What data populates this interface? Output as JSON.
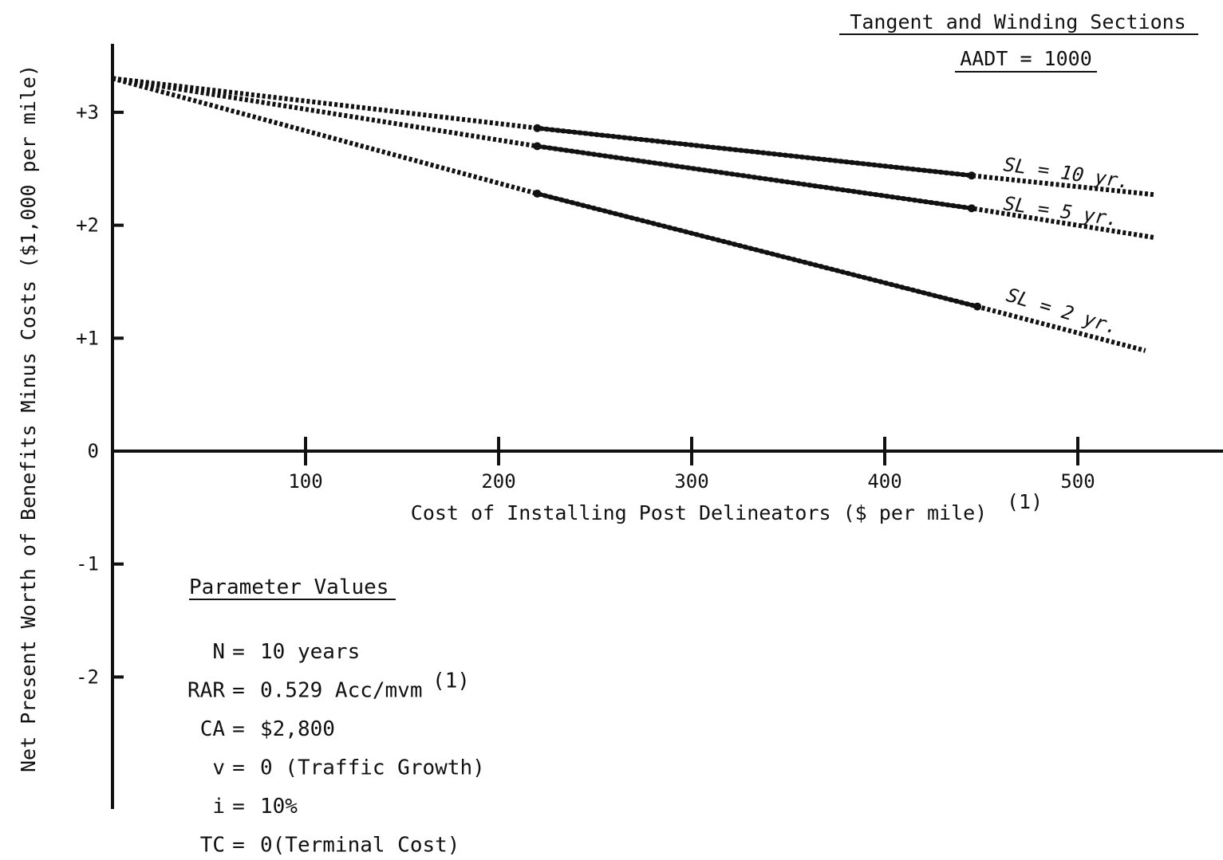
{
  "chart_data": {
    "type": "line",
    "header": {
      "line1": "Tangent and Winding Sections",
      "line2": "AADT = 1000"
    },
    "xlabel": "Cost of Installing Post Delineators ($ per mile)",
    "xlabel_superscript": "(1)",
    "ylabel": "Net Present Worth of Benefits Minus Costs ($1,000 per mile)",
    "xlim": [
      0,
      570
    ],
    "ylim": [
      -3.1,
      3.6
    ],
    "x_ticks": [
      100,
      200,
      300,
      400,
      500
    ],
    "y_ticks": [
      {
        "value": 3,
        "label": "+3"
      },
      {
        "value": 2,
        "label": "+2"
      },
      {
        "value": 1,
        "label": "+1"
      },
      {
        "value": 0,
        "label": "0"
      },
      {
        "value": -1,
        "label": "-1"
      },
      {
        "value": -2,
        "label": "-2"
      }
    ],
    "series": [
      {
        "name": "SL = 10 yr.",
        "x": [
          0,
          220,
          445,
          540
        ],
        "y": [
          3.3,
          2.86,
          2.44,
          2.27
        ],
        "solid_range": [
          220,
          445
        ]
      },
      {
        "name": "SL = 5 yr.",
        "x": [
          0,
          220,
          445,
          540
        ],
        "y": [
          3.3,
          2.7,
          2.15,
          1.89
        ],
        "solid_range": [
          220,
          445
        ]
      },
      {
        "name": "SL = 2 yr.",
        "x": [
          0,
          220,
          448,
          535
        ],
        "y": [
          3.3,
          2.28,
          1.28,
          0.89
        ],
        "solid_range": [
          220,
          448
        ]
      }
    ],
    "parameters": {
      "title": "Parameter Values",
      "items": [
        {
          "sym": "N",
          "val": "10 years",
          "sup": ""
        },
        {
          "sym": "RAR",
          "val": "0.529 Acc/mvm",
          "sup": "(1)"
        },
        {
          "sym": "CA",
          "val": "$2,800",
          "sup": ""
        },
        {
          "sym": "v",
          "val": "0 (Traffic Growth)",
          "sup": ""
        },
        {
          "sym": "i",
          "val": "10%",
          "sup": ""
        },
        {
          "sym": "TC",
          "val": "0(Terminal Cost)",
          "sup": ""
        }
      ]
    },
    "grid": false,
    "colors": {
      "ink": "#111111"
    }
  }
}
